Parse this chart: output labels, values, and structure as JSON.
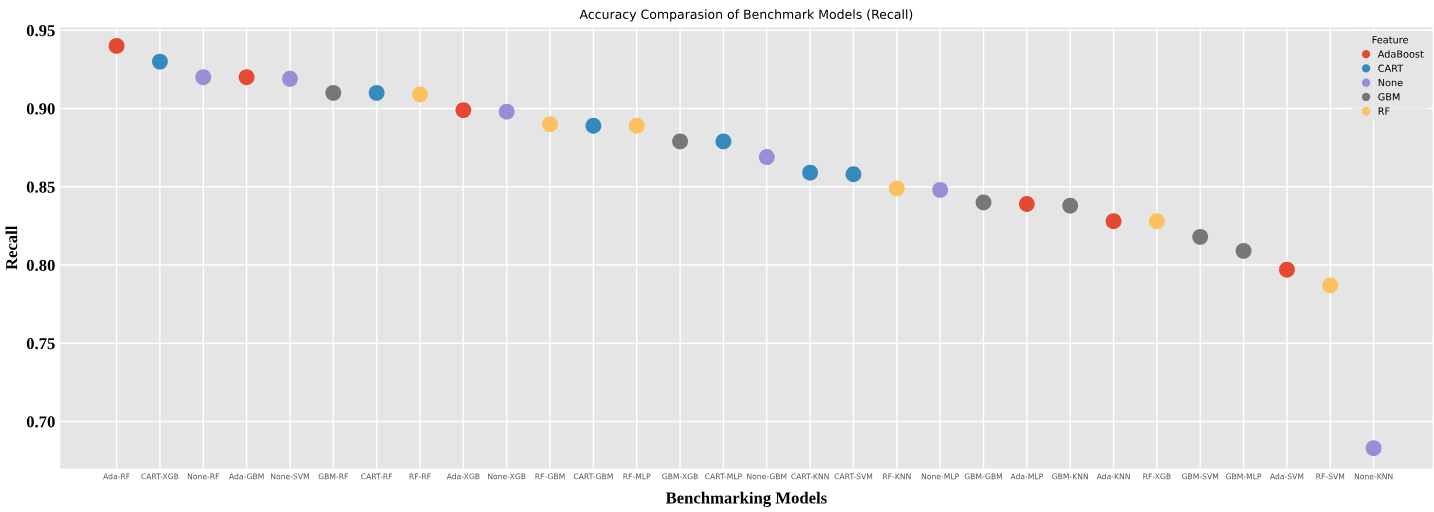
{
  "chart_data": {
    "type": "scatter",
    "title": "Accuracy Comparasion of Benchmark Models (Recall)",
    "xlabel": "Benchmarking Models",
    "ylabel": "Recall",
    "legend_title": "Feature",
    "categories": [
      "Ada-RF",
      "CART-XGB",
      "None-RF",
      "Ada-GBM",
      "None-SVM",
      "GBM-RF",
      "CART-RF",
      "RF-RF",
      "Ada-XGB",
      "None-XGB",
      "RF-GBM",
      "CART-GBM",
      "RF-MLP",
      "GBM-XGB",
      "CART-MLP",
      "None-GBM",
      "CART-KNN",
      "CART-SVM",
      "RF-KNN",
      "None-MLP",
      "GBM-GBM",
      "Ada-MLP",
      "GBM-KNN",
      "Ada-KNN",
      "RF-XGB",
      "GBM-SVM",
      "GBM-MLP",
      "Ada-SVM",
      "RF-SVM",
      "None-KNN"
    ],
    "series": [
      {
        "name": "AdaBoost",
        "color": "#e24a33",
        "values": [
          0.94,
          null,
          null,
          0.92,
          null,
          null,
          null,
          null,
          0.899,
          null,
          null,
          null,
          null,
          null,
          null,
          null,
          null,
          null,
          null,
          null,
          null,
          0.839,
          null,
          0.828,
          null,
          null,
          null,
          0.797,
          null,
          null
        ]
      },
      {
        "name": "CART",
        "color": "#348abd",
        "values": [
          null,
          0.93,
          null,
          null,
          null,
          null,
          0.91,
          null,
          null,
          null,
          null,
          0.889,
          null,
          null,
          0.879,
          null,
          0.859,
          0.858,
          null,
          null,
          null,
          null,
          null,
          null,
          null,
          null,
          null,
          null,
          null,
          null
        ]
      },
      {
        "name": "None",
        "color": "#988ed5",
        "values": [
          null,
          null,
          0.92,
          null,
          0.919,
          null,
          null,
          null,
          null,
          0.898,
          null,
          null,
          null,
          null,
          null,
          0.869,
          null,
          null,
          null,
          0.848,
          null,
          null,
          null,
          null,
          null,
          null,
          null,
          null,
          null,
          0.683
        ]
      },
      {
        "name": "GBM",
        "color": "#777777",
        "values": [
          null,
          null,
          null,
          null,
          null,
          0.91,
          null,
          null,
          null,
          null,
          null,
          null,
          null,
          0.879,
          null,
          null,
          null,
          null,
          null,
          null,
          0.84,
          null,
          0.838,
          null,
          null,
          0.818,
          0.809,
          null,
          null,
          null
        ]
      },
      {
        "name": "RF",
        "color": "#fbc15e",
        "values": [
          null,
          null,
          null,
          null,
          null,
          null,
          null,
          0.909,
          null,
          null,
          0.89,
          null,
          0.889,
          null,
          null,
          null,
          null,
          null,
          0.849,
          null,
          null,
          null,
          null,
          null,
          0.828,
          null,
          null,
          null,
          0.787,
          null
        ]
      }
    ],
    "ylim": [
      0.67,
      0.952
    ],
    "yticks": [
      {
        "value": 0.7,
        "label": "0.70"
      },
      {
        "value": 0.75,
        "label": "0.75"
      },
      {
        "value": 0.8,
        "label": "0.80"
      },
      {
        "value": 0.85,
        "label": "0.85"
      },
      {
        "value": 0.9,
        "label": "0.90"
      },
      {
        "value": 0.95,
        "label": "0.95"
      }
    ],
    "grid": true,
    "legend": "top right",
    "marker": "circle"
  }
}
